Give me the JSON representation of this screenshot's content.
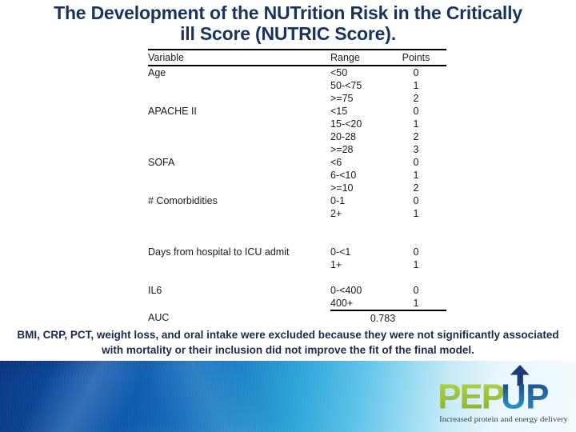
{
  "slide": {
    "title_line1": "The Development of the NUTrition Risk in the Critically",
    "title_line2": "ill Score (NUTRIC Score).",
    "title_color": "#17335f",
    "footnote_line1": "BMI, CRP, PCT, weight loss, and oral intake were excluded because they were not significantly associated",
    "footnote_line2": "with mortality or their inclusion did not improve the fit of the final model."
  },
  "table": {
    "headers": {
      "variable": "Variable",
      "range": "Range",
      "points": "Points"
    },
    "rows": [
      {
        "variable": "Age",
        "range": "<50",
        "points": "0"
      },
      {
        "variable": "",
        "range": "50-<75",
        "points": "1"
      },
      {
        "variable": "",
        "range": ">=75",
        "points": "2"
      },
      {
        "variable": "APACHE II",
        "range": "<15",
        "points": "0"
      },
      {
        "variable": "",
        "range": "15-<20",
        "points": "1"
      },
      {
        "variable": "",
        "range": "20-28",
        "points": "2"
      },
      {
        "variable": "",
        "range": ">=28",
        "points": "3"
      },
      {
        "variable": "SOFA",
        "range": "<6",
        "points": "0"
      },
      {
        "variable": "",
        "range": "6-<10",
        "points": "1"
      },
      {
        "variable": "",
        "range": ">=10",
        "points": "2"
      },
      {
        "variable": "# Comorbidities",
        "range": "0-1",
        "points": "0"
      },
      {
        "variable": "",
        "range": "2+",
        "points": "1"
      },
      {
        "blank": true
      },
      {
        "blank": true
      },
      {
        "variable": "Days from hospital to ICU admit",
        "range": "0-<1",
        "points": "0"
      },
      {
        "variable": "",
        "range": "1+",
        "points": "1"
      },
      {
        "blank": true
      },
      {
        "variable": "IL6",
        "range": "0-<400",
        "points": "0"
      },
      {
        "variable": "",
        "range": "400+",
        "points": "1",
        "rule_below": true
      },
      {
        "auc": true,
        "variable": "AUC",
        "value": "0.783"
      }
    ]
  },
  "banner": {
    "gradient_left": "#0a3a86",
    "gradient_mid": "#2fa6d9",
    "gradient_right": "#f3fbfe"
  },
  "logo": {
    "text_pep": "PEP",
    "text_u": "U",
    "text_p": "P",
    "tagline": "Increased protein and energy delivery",
    "green": "#9cbf3b",
    "blue": "#1d5fa5",
    "navy": "#1a3d7a",
    "tagline_color": "#2f3f4c"
  }
}
